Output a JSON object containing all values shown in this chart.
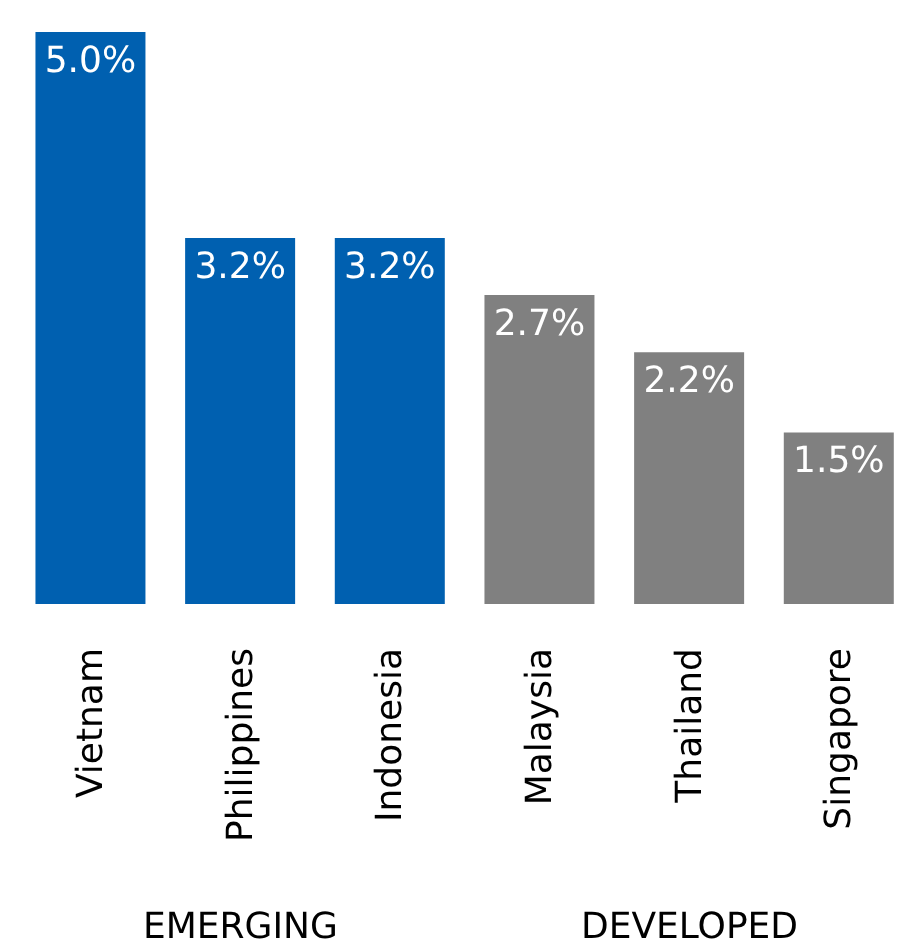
{
  "chart_data": {
    "type": "bar",
    "categories": [
      "Vietnam",
      "Philippines",
      "Indonesia",
      "Malaysia",
      "Thailand",
      "Singapore"
    ],
    "values": [
      5.0,
      3.2,
      3.2,
      2.7,
      2.2,
      1.5
    ],
    "colors": [
      "#0060b0",
      "#0060b0",
      "#0060b0",
      "#808080",
      "#808080",
      "#808080"
    ],
    "value_labels": [
      "5.0%",
      "3.2%",
      "3.2%",
      "2.7%",
      "2.2%",
      "1.5%"
    ],
    "annotations": [
      "EMERGING",
      "DEVELOPED"
    ]
  }
}
